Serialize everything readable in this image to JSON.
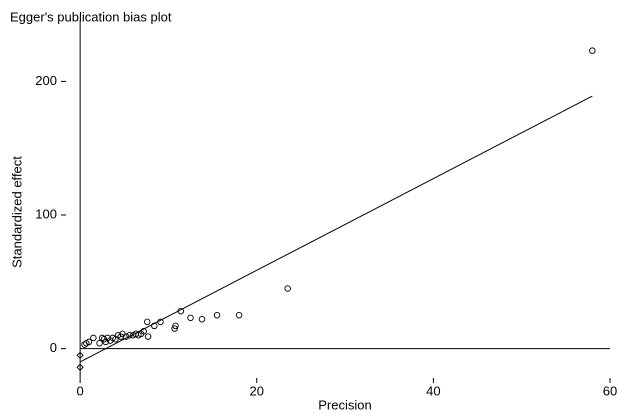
{
  "chart_data": {
    "type": "scatter",
    "title": "Egger's publication bias plot",
    "x_label": "Precision",
    "y_label": "Standardized effect",
    "series": [
      {
        "kind": "points",
        "color": "#000000",
        "x": [
          58,
          23.5,
          18,
          15.5,
          13.8,
          12.5,
          11.4,
          10.8,
          10.7,
          9.1,
          8.4,
          7.6,
          7.7,
          7.2,
          6.9,
          6.6,
          6.3,
          6.0,
          5.6,
          5.2,
          4.8,
          4.6,
          4.3,
          4.0,
          3.7,
          3.4,
          3.1,
          2.9,
          2.7,
          2.5,
          2.2,
          1.5,
          1.0,
          0.7,
          0.5
        ],
        "values": [
          223,
          45,
          25,
          25,
          22,
          23,
          28,
          17,
          15,
          20,
          17,
          20,
          9,
          13,
          11,
          10,
          11,
          10,
          10,
          9,
          11,
          9,
          10,
          7,
          8,
          6,
          8,
          5,
          7,
          8,
          4,
          8,
          5,
          4,
          3
        ]
      },
      {
        "kind": "line",
        "color": "#000000",
        "x": [
          0,
          58
        ],
        "values": [
          -10,
          189
        ]
      },
      {
        "kind": "diamonds",
        "color": "#000000",
        "x": [
          0,
          0
        ],
        "values": [
          -5,
          -14
        ]
      }
    ],
    "xlim": [
      -1.6,
      60
    ],
    "ylim": [
      -22,
      225
    ],
    "xticks": [
      0,
      20,
      40,
      60
    ],
    "yticks": [
      0,
      100,
      200
    ],
    "reference_lines": {
      "x": 0,
      "y": 0
    }
  }
}
